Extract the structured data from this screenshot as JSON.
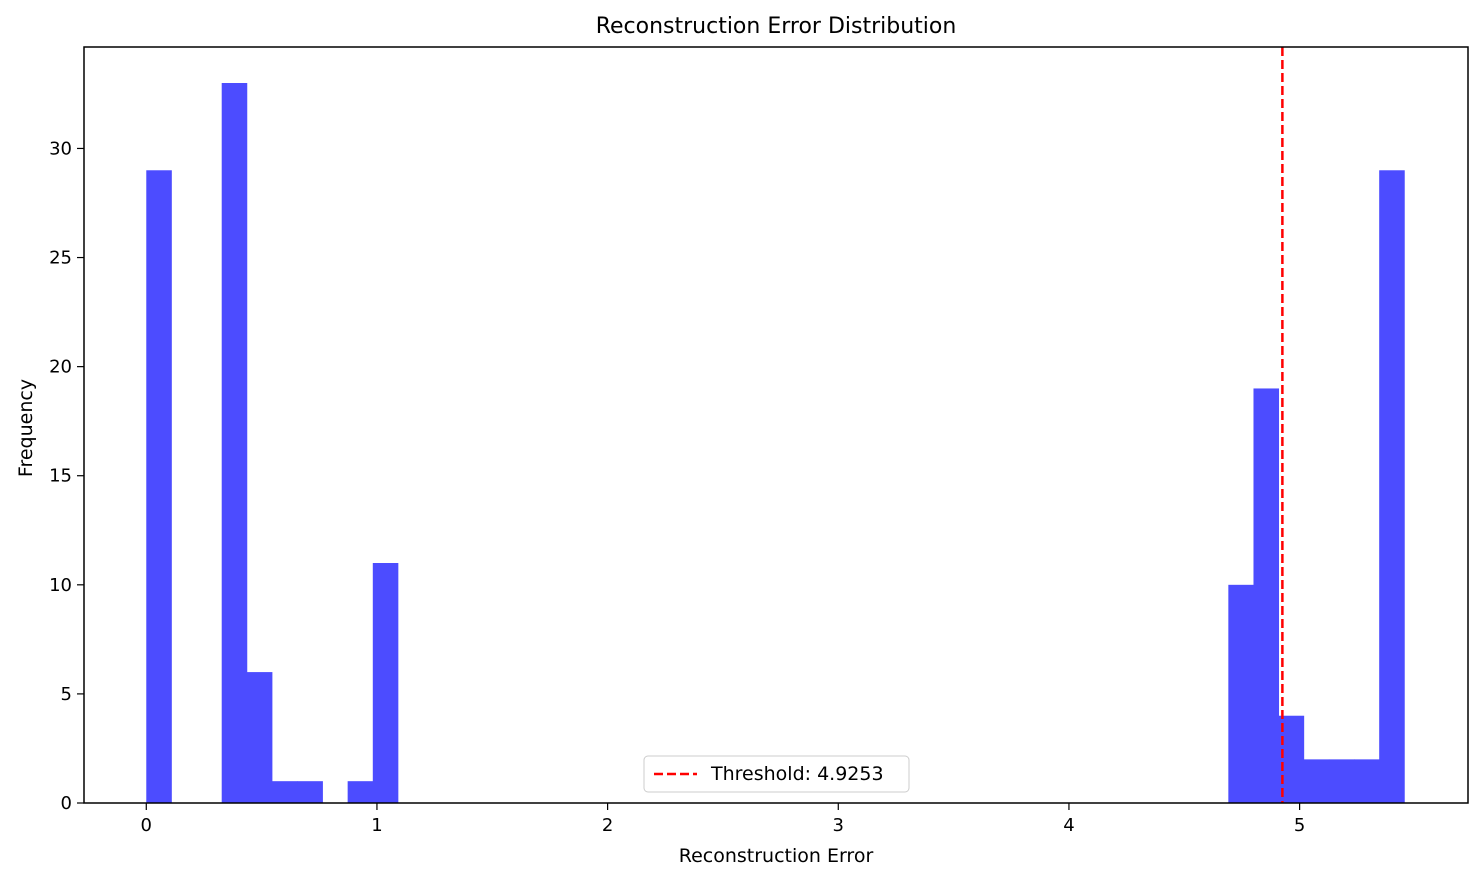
{
  "chart_data": {
    "type": "bar",
    "title": "Reconstruction Error Distribution",
    "xlabel": "Reconstruction Error",
    "ylabel": "Frequency",
    "xlim": [
      -0.27,
      5.73
    ],
    "ylim": [
      0,
      34.65
    ],
    "grid": false,
    "legend_placement": "lower-center",
    "bar_color": "#4c4cff",
    "threshold_color": "#ff0000",
    "x_ticks": [
      0,
      1,
      2,
      3,
      4,
      5
    ],
    "y_ticks": [
      0,
      5,
      10,
      15,
      20,
      25,
      30
    ],
    "bins": [
      {
        "x0": 0.0,
        "x1": 0.109,
        "value": 29
      },
      {
        "x0": 0.327,
        "x1": 0.436,
        "value": 33
      },
      {
        "x0": 0.436,
        "x1": 0.545,
        "value": 6
      },
      {
        "x0": 0.545,
        "x1": 0.655,
        "value": 1
      },
      {
        "x0": 0.655,
        "x1": 0.764,
        "value": 1
      },
      {
        "x0": 0.873,
        "x1": 0.982,
        "value": 1
      },
      {
        "x0": 0.982,
        "x1": 1.091,
        "value": 11
      },
      {
        "x0": 4.691,
        "x1": 4.8,
        "value": 10
      },
      {
        "x0": 4.8,
        "x1": 4.909,
        "value": 19
      },
      {
        "x0": 4.909,
        "x1": 5.018,
        "value": 4
      },
      {
        "x0": 5.018,
        "x1": 5.127,
        "value": 2
      },
      {
        "x0": 5.127,
        "x1": 5.236,
        "value": 2
      },
      {
        "x0": 5.236,
        "x1": 5.345,
        "value": 2
      },
      {
        "x0": 5.345,
        "x1": 5.454,
        "value": 29
      }
    ],
    "threshold": {
      "value": 4.9253,
      "label": "Threshold: 4.9253"
    }
  }
}
